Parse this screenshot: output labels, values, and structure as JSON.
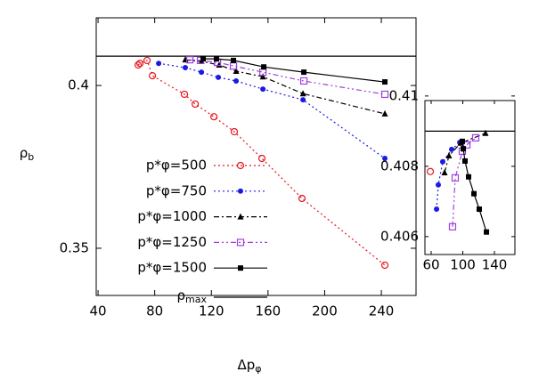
{
  "chart_data": [
    {
      "type": "line",
      "x_label": {
        "text": "Δp",
        "sub": "φ"
      },
      "y_label": {
        "text": "ρ",
        "sub": "b"
      },
      "xlim": [
        38.7,
        264.5
      ],
      "ylim": [
        0.3355,
        0.4208
      ],
      "xticks": [
        40,
        80,
        120,
        160,
        200,
        240
      ],
      "yticks": [
        0.35,
        0.4
      ],
      "hline": {
        "name": {
          "text": "ρ",
          "sub": "max"
        },
        "value": 0.409,
        "color": "#000000"
      },
      "series": [
        {
          "name": "p*φ=500",
          "color": "#e8141c",
          "marker": "open-circle",
          "dash": "2,3",
          "x": [
            68.3,
            69.6,
            74.6,
            78.4,
            101.0,
            108.6,
            121.8,
            136.2,
            155.7,
            184.0,
            242.5
          ],
          "values": [
            0.4063,
            0.4068,
            0.4077,
            0.403,
            0.3973,
            0.3943,
            0.3904,
            0.3858,
            0.3776,
            0.3653,
            0.3448
          ]
        },
        {
          "name": "p*φ=750",
          "color": "#1a1ae6",
          "marker": "filled-circle",
          "dash": "2,3",
          "x": [
            82.8,
            101.6,
            113.0,
            124.9,
            137.5,
            156.4,
            184.7,
            242.5
          ],
          "values": [
            0.4068,
            0.4055,
            0.4041,
            0.4025,
            0.4014,
            0.3989,
            0.3956,
            0.3776
          ]
        },
        {
          "name": "p*φ=1000",
          "color": "#000000",
          "marker": "triangle",
          "dash": "6,3,2,3",
          "x": [
            101.6,
            113.0,
            125.5,
            137.5,
            156.4,
            184.7,
            242.5
          ],
          "values": [
            0.4079,
            0.4074,
            0.4063,
            0.4044,
            0.4027,
            0.3975,
            0.3913
          ]
        },
        {
          "name": "p*φ=1250",
          "color": "#a040e0",
          "marker": "open-square",
          "dash": "6,3,2,3,2,3",
          "x": [
            104.8,
            112.3,
            124.3,
            135.6,
            156.4,
            185.3,
            242.5
          ],
          "values": [
            0.4079,
            0.4077,
            0.4071,
            0.406,
            0.4041,
            0.4014,
            0.3973
          ]
        },
        {
          "name": "p*φ=1500",
          "color": "#000000",
          "marker": "filled-square",
          "dash": "none",
          "x": [
            114.2,
            123.6,
            135.6,
            157.0,
            185.3,
            242.5
          ],
          "values": [
            0.4082,
            0.4082,
            0.4077,
            0.4057,
            0.4041,
            0.4011
          ]
        }
      ]
    },
    {
      "type": "line",
      "xlim": [
        52.1,
        165.9
      ],
      "ylim": [
        0.40549,
        0.40987
      ],
      "xticks": [
        60,
        100,
        140
      ],
      "yticks": [
        0.406,
        0.408,
        0.41
      ],
      "hline": {
        "value": 0.409,
        "color": "#000000"
      },
      "series": [
        {
          "color": "#e8141c",
          "marker": "open-circle",
          "dash": "2,3",
          "x": [
            58.9
          ],
          "values": [
            0.40785
          ]
        },
        {
          "color": "#1a1ae6",
          "marker": "filled-circle",
          "dash": "2,3",
          "x": [
            66.8,
            69.0,
            74.6,
            85.9,
            96.1
          ],
          "values": [
            0.40678,
            0.40747,
            0.40813,
            0.40848,
            0.40868
          ]
        },
        {
          "color": "#000000",
          "marker": "triangle",
          "dash": "6,3,2,3",
          "x": [
            76.9,
            82.5,
            97.2,
            128.7
          ],
          "values": [
            0.40782,
            0.4083,
            0.40866,
            0.40894
          ]
        },
        {
          "color": "#a040e0",
          "marker": "open-square",
          "dash": "6,3,2,3,2,3",
          "x": [
            87.0,
            90.4,
            99.4,
            105.1,
            116.3
          ],
          "values": [
            0.40628,
            0.40767,
            0.40843,
            0.40861,
            0.40881
          ]
        },
        {
          "color": "#000000",
          "marker": "filled-square",
          "dash": "none",
          "x": [
            129.9,
            120.8,
            114.1,
            107.3,
            102.8,
            100.6,
            99.4
          ],
          "values": [
            0.40613,
            0.40678,
            0.40722,
            0.4077,
            0.40815,
            0.4085,
            0.40871
          ]
        }
      ]
    }
  ]
}
